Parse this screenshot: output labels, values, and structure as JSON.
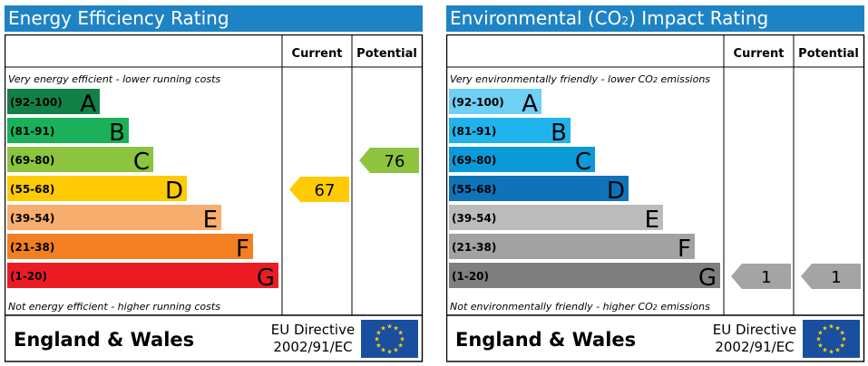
{
  "chart_data": [
    {
      "type": "bar",
      "title": "Energy Efficiency Rating",
      "headers": {
        "current": "Current",
        "potential": "Potential"
      },
      "top_note": "Very energy efficient - lower running costs",
      "bottom_note": "Not energy efficient - higher running costs",
      "bands": [
        {
          "range": "(92-100)",
          "letter": "A",
          "color": "#138147"
        },
        {
          "range": "(81-91)",
          "letter": "B",
          "color": "#1bb15a"
        },
        {
          "range": "(69-80)",
          "letter": "C",
          "color": "#8cc43f"
        },
        {
          "range": "(55-68)",
          "letter": "D",
          "color": "#fecb05"
        },
        {
          "range": "(39-54)",
          "letter": "E",
          "color": "#f7ad6d"
        },
        {
          "range": "(21-38)",
          "letter": "F",
          "color": "#f28023"
        },
        {
          "range": "(1-20)",
          "letter": "G",
          "color": "#ec1c24"
        }
      ],
      "current": {
        "value": 67,
        "band": "D",
        "color": "#fecb05"
      },
      "potential": {
        "value": 76,
        "band": "C",
        "color": "#8cc43f"
      },
      "footer": {
        "region": "England & Wales",
        "directive_line1": "EU Directive",
        "directive_line2": "2002/91/EC"
      }
    },
    {
      "type": "bar",
      "title_prefix": "Environmental (CO",
      "title_sub": "2",
      "title_suffix": ") Impact Rating",
      "headers": {
        "current": "Current",
        "potential": "Potential"
      },
      "top_note": "Very environmentally friendly - lower CO",
      "top_note_sub": "2",
      "top_note_end": " emissions",
      "bottom_note": "Not environmentally friendly - higher CO",
      "bottom_note_sub": "2",
      "bottom_note_end": " emissions",
      "bands": [
        {
          "range": "(92-100)",
          "letter": "A",
          "color": "#6fcff5"
        },
        {
          "range": "(81-91)",
          "letter": "B",
          "color": "#20b3eb"
        },
        {
          "range": "(69-80)",
          "letter": "C",
          "color": "#0b9ad7"
        },
        {
          "range": "(55-68)",
          "letter": "D",
          "color": "#0f73ba"
        },
        {
          "range": "(39-54)",
          "letter": "E",
          "color": "#bbbbbb"
        },
        {
          "range": "(21-38)",
          "letter": "F",
          "color": "#a2a2a2"
        },
        {
          "range": "(1-20)",
          "letter": "G",
          "color": "#7f7f7f"
        }
      ],
      "current": {
        "value": 1,
        "band": "G",
        "color": "#a4a4a4"
      },
      "potential": {
        "value": 1,
        "band": "G",
        "color": "#a4a4a4"
      },
      "footer": {
        "region": "England & Wales",
        "directive_line1": "EU Directive",
        "directive_line2": "2002/91/EC"
      }
    }
  ],
  "colors": {
    "title_bar": "#1e83c4",
    "eu_flag": "#1a4fa0",
    "eu_stars": "#ffd600"
  }
}
